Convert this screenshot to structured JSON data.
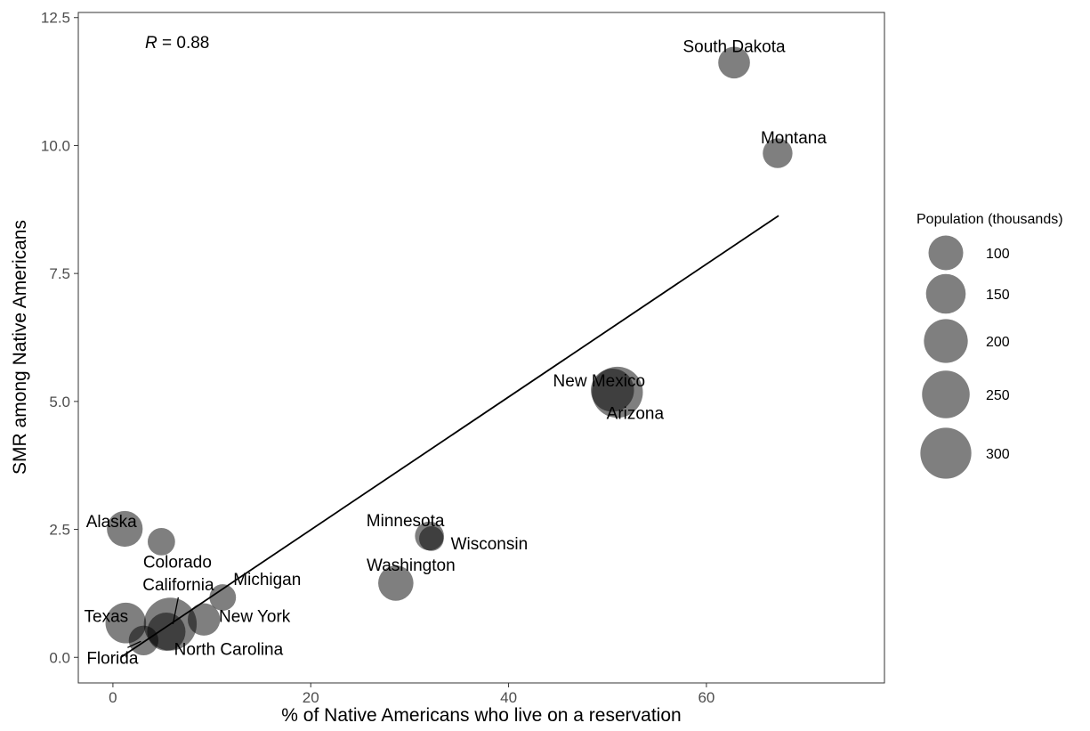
{
  "chart_data": {
    "type": "scatter",
    "xlabel": "% of Native Americans who live on a reservation",
    "ylabel": "SMR among Native Americans",
    "xlim": [
      -3.5,
      78
    ],
    "ylim": [
      -0.5,
      12.6
    ],
    "x_ticks": [
      0,
      20,
      40,
      60
    ],
    "y_ticks": [
      0.0,
      2.5,
      5.0,
      7.5,
      10.0,
      12.5
    ],
    "y_tick_labels": [
      "0.0",
      "2.5",
      "5.0",
      "7.5",
      "10.0",
      "12.5"
    ],
    "annotation": {
      "var": "R",
      "text": " = 0.88"
    },
    "grid": false,
    "legend_placement": "right",
    "size_legend": {
      "title": "Population (thousands)",
      "values": [
        100,
        150,
        200,
        250,
        300
      ]
    },
    "regression_line": {
      "x": [
        0.8,
        67.3
      ],
      "y": [
        -0.0,
        8.63
      ]
    },
    "points": [
      {
        "label": "South Dakota",
        "x": 62.8,
        "y": 11.62,
        "pop": 75
      },
      {
        "label": "Montana",
        "x": 67.2,
        "y": 9.85,
        "pop": 60
      },
      {
        "label": "New Mexico",
        "x": 50.5,
        "y": 5.22,
        "pop": 190
      },
      {
        "label": "Arizona",
        "x": 51.0,
        "y": 5.18,
        "pop": 300
      },
      {
        "label": "Alaska",
        "x": 1.2,
        "y": 2.51,
        "pop": 110
      },
      {
        "label": "Colorado",
        "x": 4.9,
        "y": 2.26,
        "pop": 45
      },
      {
        "label": "Minnesota",
        "x": 32.0,
        "y": 2.37,
        "pop": 55
      },
      {
        "label": "Wisconsin",
        "x": 32.2,
        "y": 2.32,
        "pop": 30
      },
      {
        "label": "Washington",
        "x": 28.6,
        "y": 1.45,
        "pop": 105
      },
      {
        "label": "Michigan",
        "x": 11.1,
        "y": 1.17,
        "pop": 40
      },
      {
        "label": "California",
        "x": 5.8,
        "y": 0.65,
        "pop": 330
      },
      {
        "label": "Texas",
        "x": 1.3,
        "y": 0.67,
        "pop": 160
      },
      {
        "label": "New York",
        "x": 9.2,
        "y": 0.74,
        "pop": 80
      },
      {
        "label": "North Carolina",
        "x": 5.4,
        "y": 0.5,
        "pop": 135
      },
      {
        "label": "Florida",
        "x": 3.1,
        "y": 0.33,
        "pop": 60
      }
    ]
  }
}
